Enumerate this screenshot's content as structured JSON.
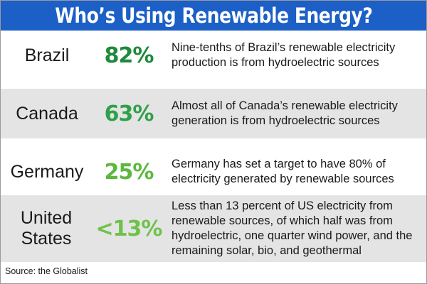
{
  "title": "Who’s Using Renewable Energy?",
  "rows": [
    {
      "country": "Brazil",
      "percent": "82%",
      "color": "#1e8a3c",
      "description": "Nine-tenths of Brazil’s renewable electricity production is from hydroelectric sources"
    },
    {
      "country": "Canada",
      "percent": "63%",
      "color": "#2fa04a",
      "description": "Almost all of Canada’s renewable electricity generation is from hydroelectric sources"
    },
    {
      "country": "Germany",
      "percent": "25%",
      "color": "#5cb83e",
      "description": "Germany has set a target to have 80% of electricity generated by renewable sources"
    },
    {
      "country": "United States",
      "percent": "<13%",
      "color": "#6ec24a",
      "description": "Less than 13 percent of US electricity from renewable sources, of which half was from hydroelectric, one quarter wind power, and the remaining solar, bio, and geothermal"
    }
  ],
  "source": "Source: the Globalist"
}
